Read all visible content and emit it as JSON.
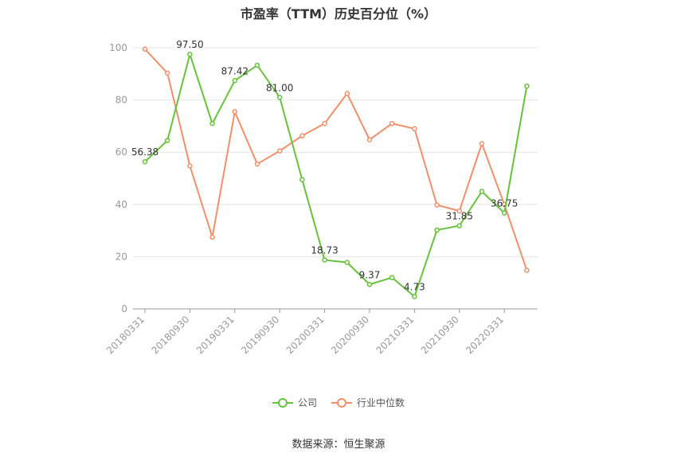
{
  "chart_data": {
    "type": "line",
    "title": "市盈率（TTM）历史百分位（%）",
    "x": [
      "20180331",
      "20180630",
      "20180930",
      "20181231",
      "20190331",
      "20190630",
      "20190930",
      "20191231",
      "20200331",
      "20200630",
      "20200930",
      "20201231",
      "20210331",
      "20210630",
      "20210930",
      "20211231",
      "20220331",
      "20220630"
    ],
    "x_tick_labels": [
      "20180331",
      "20180930",
      "20190331",
      "20190930",
      "20200331",
      "20200930",
      "20210331",
      "20210930",
      "20220331"
    ],
    "y_ticks": [
      0,
      20,
      40,
      60,
      80,
      100
    ],
    "ylim": [
      0,
      100
    ],
    "grid": true,
    "legend_position": "bottom",
    "series": [
      {
        "name": "公司",
        "color": "#66c23a",
        "values": [
          56.38,
          64.5,
          97.5,
          71.0,
          87.42,
          93.3,
          81.0,
          49.5,
          18.73,
          17.8,
          9.37,
          12.0,
          4.73,
          30.2,
          31.85,
          45.0,
          36.75,
          85.3
        ],
        "labels": [
          "56.38",
          "",
          "97.50",
          "",
          "87.42",
          "",
          "81.00",
          "",
          "18.73",
          "",
          "9.37",
          "",
          "4.73",
          "",
          "31.85",
          "",
          "36.75",
          ""
        ]
      },
      {
        "name": "行业中位数",
        "color": "#f0906a",
        "values": [
          99.5,
          90.3,
          54.8,
          27.5,
          75.5,
          55.5,
          60.5,
          66.3,
          71.0,
          82.5,
          64.8,
          71.0,
          69.0,
          39.8,
          37.5,
          63.3,
          40.0,
          14.8
        ],
        "labels": []
      }
    ]
  },
  "source": "数据来源：恒生聚源"
}
